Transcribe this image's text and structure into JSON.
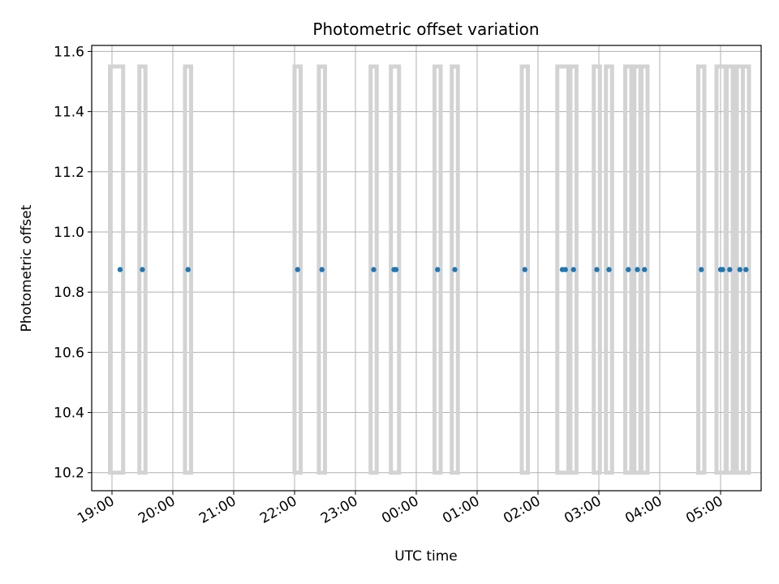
{
  "chart_data": {
    "type": "scatter",
    "title": "Photometric offset variation",
    "xlabel": "UTC time",
    "ylabel": "Photometric offset",
    "x_axis": {
      "type": "time",
      "range": [
        "18:40",
        "05:40"
      ],
      "ticks": [
        "19:00",
        "20:00",
        "21:00",
        "22:00",
        "23:00",
        "00:00",
        "01:00",
        "02:00",
        "03:00",
        "04:00",
        "05:00"
      ]
    },
    "ylim": [
      10.14,
      11.62
    ],
    "y_ticks": [
      "10.2",
      "10.4",
      "10.6",
      "10.8",
      "11.0",
      "11.2",
      "11.4",
      "11.6"
    ],
    "grid": true,
    "colors": {
      "points": "#1f77b4",
      "exposure_bands": "#d3d3d3",
      "grid": "#b0b0b0"
    },
    "exposure_band_range": [
      10.2,
      11.55
    ],
    "series": [
      {
        "x": [
          "19:08",
          "19:30",
          "20:15",
          "22:03",
          "22:27",
          "23:18",
          "23:38",
          "23:40",
          "00:21",
          "00:38",
          "01:47",
          "02:24",
          "02:27",
          "02:35",
          "02:58",
          "03:10",
          "03:29",
          "03:38",
          "03:45",
          "04:41",
          "05:00",
          "05:02",
          "05:09",
          "05:19",
          "05:25"
        ],
        "y": [
          10.875,
          10.875,
          10.875,
          10.875,
          10.875,
          10.875,
          10.875,
          10.875,
          10.875,
          10.875,
          10.875,
          10.875,
          10.875,
          10.875,
          10.875,
          10.875,
          10.875,
          10.875,
          10.875,
          10.875,
          10.875,
          10.875,
          10.875,
          10.875,
          10.875
        ]
      }
    ],
    "exposure_bands": [
      [
        "18:58",
        "19:11"
      ],
      [
        "19:27",
        "19:33"
      ],
      [
        "20:12",
        "20:18"
      ],
      [
        "22:00",
        "22:06"
      ],
      [
        "22:24",
        "22:30"
      ],
      [
        "23:15",
        "23:21"
      ],
      [
        "23:35",
        "23:43"
      ],
      [
        "00:18",
        "00:24"
      ],
      [
        "00:35",
        "00:41"
      ],
      [
        "01:44",
        "01:50"
      ],
      [
        "02:19",
        "02:30"
      ],
      [
        "02:32",
        "02:38"
      ],
      [
        "02:55",
        "03:01"
      ],
      [
        "03:07",
        "03:13"
      ],
      [
        "03:26",
        "03:32"
      ],
      [
        "03:35",
        "03:41"
      ],
      [
        "03:42",
        "03:48"
      ],
      [
        "04:38",
        "04:44"
      ],
      [
        "04:56",
        "05:05"
      ],
      [
        "05:06",
        "05:12"
      ],
      [
        "05:16",
        "05:22"
      ],
      [
        "05:22",
        "05:28"
      ]
    ]
  }
}
